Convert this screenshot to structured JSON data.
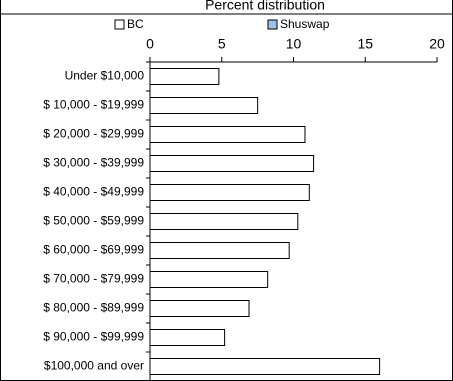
{
  "chart_data": {
    "type": "bar",
    "orientation": "horizontal",
    "title": "Percent distribution",
    "categories": [
      "Under $10,000",
      "$ 10,000 - $19,999",
      "$ 20,000 - $29,999",
      "$ 30,000 - $39,999",
      "$ 40,000 - $49,999",
      "$ 50,000 - $59,999",
      "$ 60,000 - $69,999",
      "$ 70,000 - $79,999",
      "$ 80,000 - $89,999",
      "$ 90,000 - $99,999",
      "$100,000 and over"
    ],
    "series": [
      {
        "name": "BC",
        "color": "#ffffff",
        "values": [
          4.8,
          7.5,
          10.8,
          11.4,
          11.1,
          10.3,
          9.7,
          8.2,
          6.9,
          5.2,
          16.0
        ]
      },
      {
        "name": "Shuswap",
        "color": "#9dc3e6",
        "values": [
          null,
          null,
          null,
          null,
          null,
          null,
          null,
          null,
          null,
          null,
          null
        ]
      }
    ],
    "xlim": [
      0,
      20
    ],
    "xticks": [
      0,
      5,
      10,
      15,
      20
    ]
  }
}
